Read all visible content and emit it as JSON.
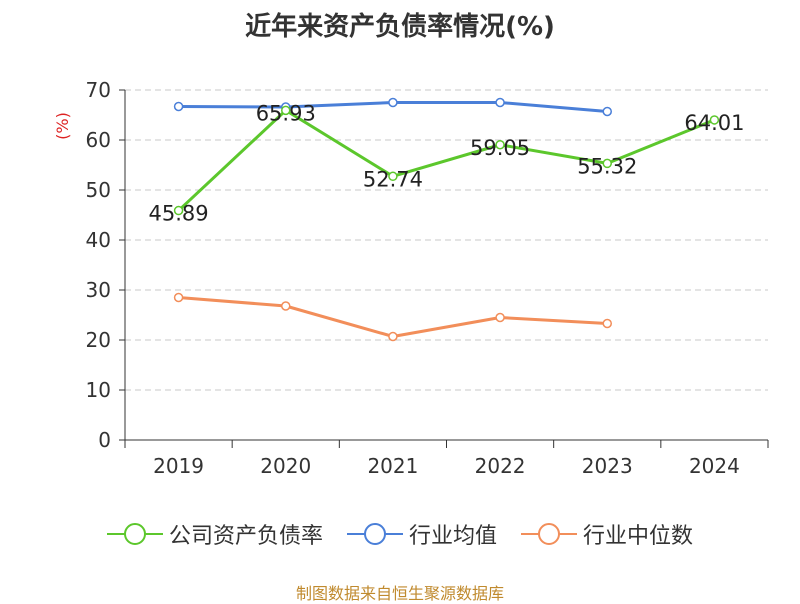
{
  "title": "近年来资产负债率情况(%)",
  "chart_data": {
    "type": "line",
    "title": "近年来资产负债率情况(%)",
    "ylabel": "(%)",
    "xlabel": "",
    "ylim": [
      0,
      70
    ],
    "yticks": [
      0,
      10,
      20,
      30,
      40,
      50,
      60,
      70
    ],
    "categories": [
      "2019",
      "2020",
      "2021",
      "2022",
      "2023",
      "2024"
    ],
    "grid": true,
    "legend_position": "bottom",
    "series": [
      {
        "name": "公司资产负债率",
        "color": "#5cc72c",
        "values": [
          45.89,
          65.93,
          52.74,
          59.05,
          55.32,
          64.01
        ],
        "labels": true
      },
      {
        "name": "行业均值",
        "color": "#4a7fd8",
        "values": [
          66.7,
          66.6,
          67.5,
          67.5,
          65.7,
          null
        ],
        "labels": false
      },
      {
        "name": "行业中位数",
        "color": "#f28e5a",
        "values": [
          28.5,
          26.8,
          20.7,
          24.5,
          23.3,
          null
        ],
        "labels": false
      }
    ]
  },
  "source": "制图数据来自恒生聚源数据库"
}
